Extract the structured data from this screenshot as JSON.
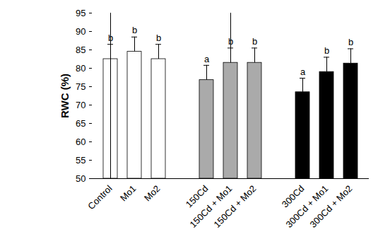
{
  "chart_data": {
    "type": "bar",
    "y_label": "RWC (%)",
    "categories": [
      "Control",
      "Mo1",
      "Mo2",
      null,
      "150Cd",
      "150Cd + Mo1",
      "150Cd + Mo2",
      null,
      "300Cd",
      "300Cd + Mo1",
      "300Cd + Mo2"
    ],
    "values": [
      82.5,
      84.5,
      82.5,
      null,
      76.8,
      81.5,
      81.5,
      null,
      73.5,
      79,
      81.3
    ],
    "errors": [
      4,
      4,
      4,
      null,
      4,
      4,
      4,
      null,
      3.8,
      4,
      4
    ],
    "letters": [
      "b",
      "b",
      "b",
      null,
      "a",
      "b",
      "b",
      null,
      "a",
      "b",
      "b"
    ],
    "colors": [
      "#ffffff",
      "#ffffff",
      "#ffffff",
      null,
      "#aaaaaa",
      "#aaaaaa",
      "#aaaaaa",
      null,
      "#000000",
      "#000000",
      "#000000"
    ],
    "ylim": [
      50,
      95
    ],
    "yticks": [
      50,
      55,
      60,
      65,
      70,
      75,
      80,
      85,
      90,
      95
    ],
    "grid": false
  }
}
